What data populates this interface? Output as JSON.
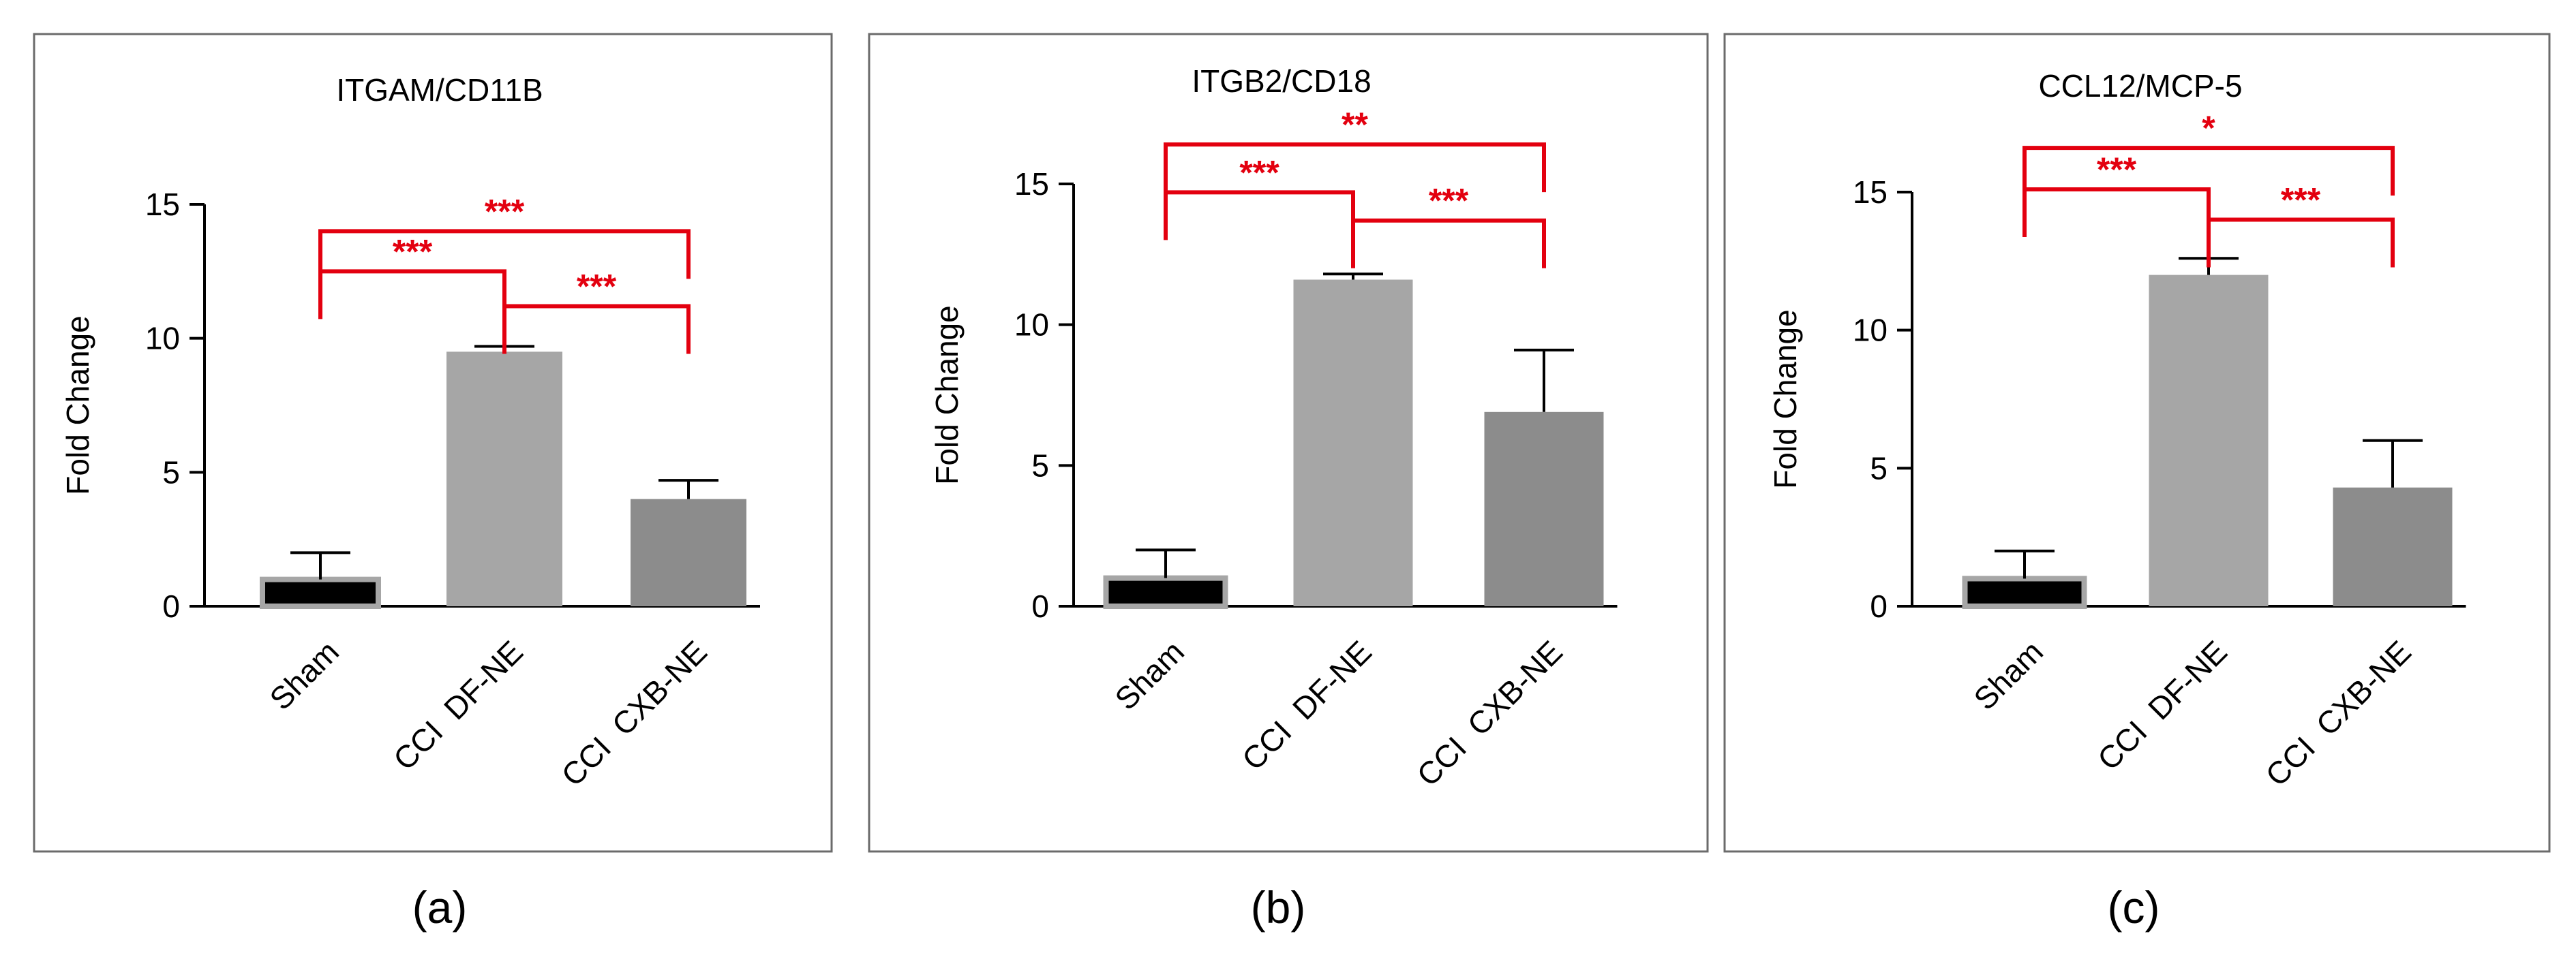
{
  "figure": {
    "bar_colors": [
      "#000000",
      "#a6a6a6",
      "#8c8c8c"
    ],
    "significance_color": "#e3000f"
  },
  "chart_data": [
    {
      "type": "bar",
      "panel_label": "(a)",
      "title": "ITGAM/CD11B",
      "xlabel": "",
      "ylabel": "Fold Change",
      "ylim": [
        0,
        15
      ],
      "yticks": [
        0,
        5,
        10,
        15
      ],
      "categories": [
        "Sham",
        "CCI  DF-NE",
        "CCI  CXB-NE"
      ],
      "values": [
        1.0,
        9.5,
        4.0
      ],
      "error_upper": [
        2.0,
        9.7,
        4.7
      ],
      "significance": [
        {
          "from": 0,
          "to": 1,
          "label": "***",
          "y": 12.5
        },
        {
          "from": 1,
          "to": 2,
          "label": "***",
          "y": 11.2
        },
        {
          "from": 0,
          "to": 2,
          "label": "***",
          "y": 14.0
        }
      ]
    },
    {
      "type": "bar",
      "panel_label": "(b)",
      "title": "ITGB2/CD18",
      "xlabel": "",
      "ylabel": "Fold Change",
      "ylim": [
        0,
        15
      ],
      "yticks": [
        0,
        5,
        10,
        15
      ],
      "categories": [
        "Sham",
        "CCI  DF-NE",
        "CCI  CXB-NE"
      ],
      "values": [
        1.0,
        11.6,
        6.9
      ],
      "error_upper": [
        2.0,
        11.8,
        9.1
      ],
      "significance": [
        {
          "from": 0,
          "to": 1,
          "label": "***",
          "y": 14.7
        },
        {
          "from": 1,
          "to": 2,
          "label": "***",
          "y": 13.7
        },
        {
          "from": 0,
          "to": 2,
          "label": "**",
          "y": 16.4
        }
      ]
    },
    {
      "type": "bar",
      "panel_label": "(c)",
      "title": "CCL12/MCP-5",
      "xlabel": "",
      "ylabel": "Fold Change",
      "ylim": [
        0,
        15
      ],
      "yticks": [
        0,
        5,
        10,
        15
      ],
      "categories": [
        "Sham",
        "CCI  DF-NE",
        "CCI  CXB-NE"
      ],
      "values": [
        1.0,
        12.0,
        4.3
      ],
      "error_upper": [
        2.0,
        12.6,
        6.0
      ],
      "significance": [
        {
          "from": 0,
          "to": 1,
          "label": "***",
          "y": 15.1
        },
        {
          "from": 1,
          "to": 2,
          "label": "***",
          "y": 14.0
        },
        {
          "from": 0,
          "to": 2,
          "label": "*",
          "y": 16.6
        }
      ]
    }
  ]
}
